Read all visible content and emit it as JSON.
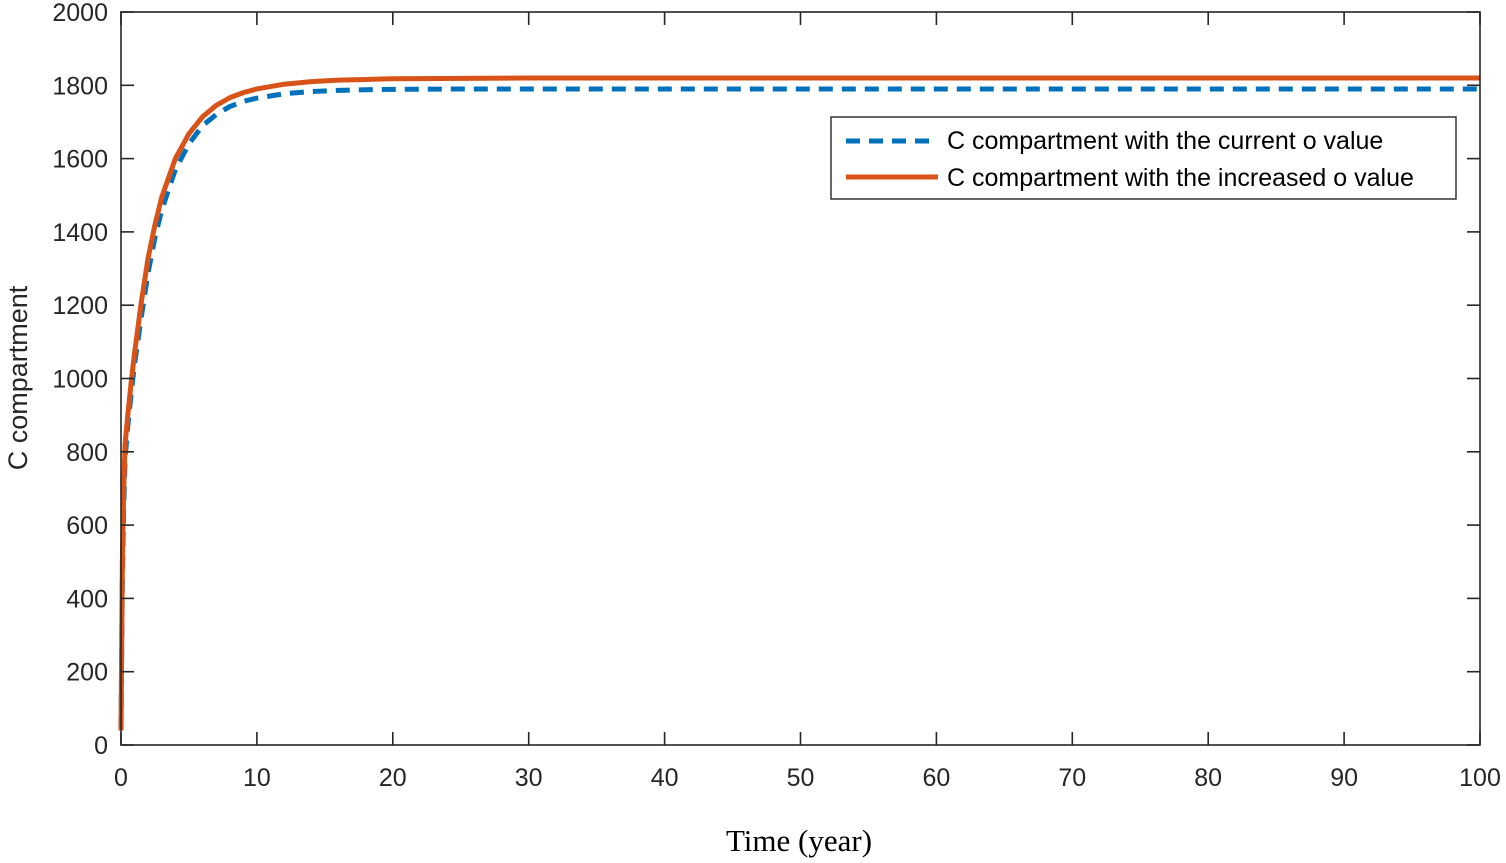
{
  "chart_data": {
    "type": "line",
    "title": "",
    "xlabel": "Time (year)",
    "ylabel": "C compartment",
    "xlim": [
      0,
      100
    ],
    "ylim": [
      0,
      2000
    ],
    "xticks": [
      0,
      10,
      20,
      30,
      40,
      50,
      60,
      70,
      80,
      90,
      100
    ],
    "yticks": [
      0,
      200,
      400,
      600,
      800,
      1000,
      1200,
      1400,
      1600,
      1800,
      2000
    ],
    "grid": false,
    "legend": {
      "placement": "top-right"
    },
    "series": [
      {
        "name": "C compartment with the current o value",
        "color": "#0072BD",
        "style": "dashed",
        "x": [
          0,
          0.1,
          0.2,
          0.3,
          0.5,
          0.75,
          1,
          1.5,
          2,
          2.5,
          3,
          4,
          5,
          6,
          7,
          8,
          9,
          10,
          12,
          14,
          16,
          18,
          20,
          25,
          30,
          40,
          50,
          60,
          70,
          80,
          90,
          100
        ],
        "y": [
          40,
          450,
          650,
          780,
          870,
          960,
          1040,
          1170,
          1290,
          1385,
          1460,
          1570,
          1640,
          1690,
          1720,
          1742,
          1756,
          1765,
          1777,
          1783,
          1786,
          1788,
          1789,
          1790,
          1790,
          1790,
          1790,
          1790,
          1790,
          1790,
          1790,
          1790
        ]
      },
      {
        "name": "C compartment with the increased o value",
        "color": "#D95319",
        "style": "solid",
        "x": [
          0,
          0.1,
          0.2,
          0.3,
          0.5,
          0.75,
          1,
          1.5,
          2,
          2.5,
          3,
          4,
          5,
          6,
          7,
          8,
          9,
          10,
          12,
          14,
          16,
          18,
          20,
          25,
          30,
          40,
          50,
          60,
          70,
          80,
          90,
          100
        ],
        "y": [
          40,
          500,
          700,
          820,
          900,
          990,
          1070,
          1210,
          1330,
          1420,
          1495,
          1600,
          1668,
          1714,
          1745,
          1766,
          1780,
          1790,
          1803,
          1810,
          1814,
          1816,
          1818,
          1819,
          1820,
          1820,
          1820,
          1820,
          1820,
          1820,
          1820,
          1820
        ]
      }
    ]
  }
}
